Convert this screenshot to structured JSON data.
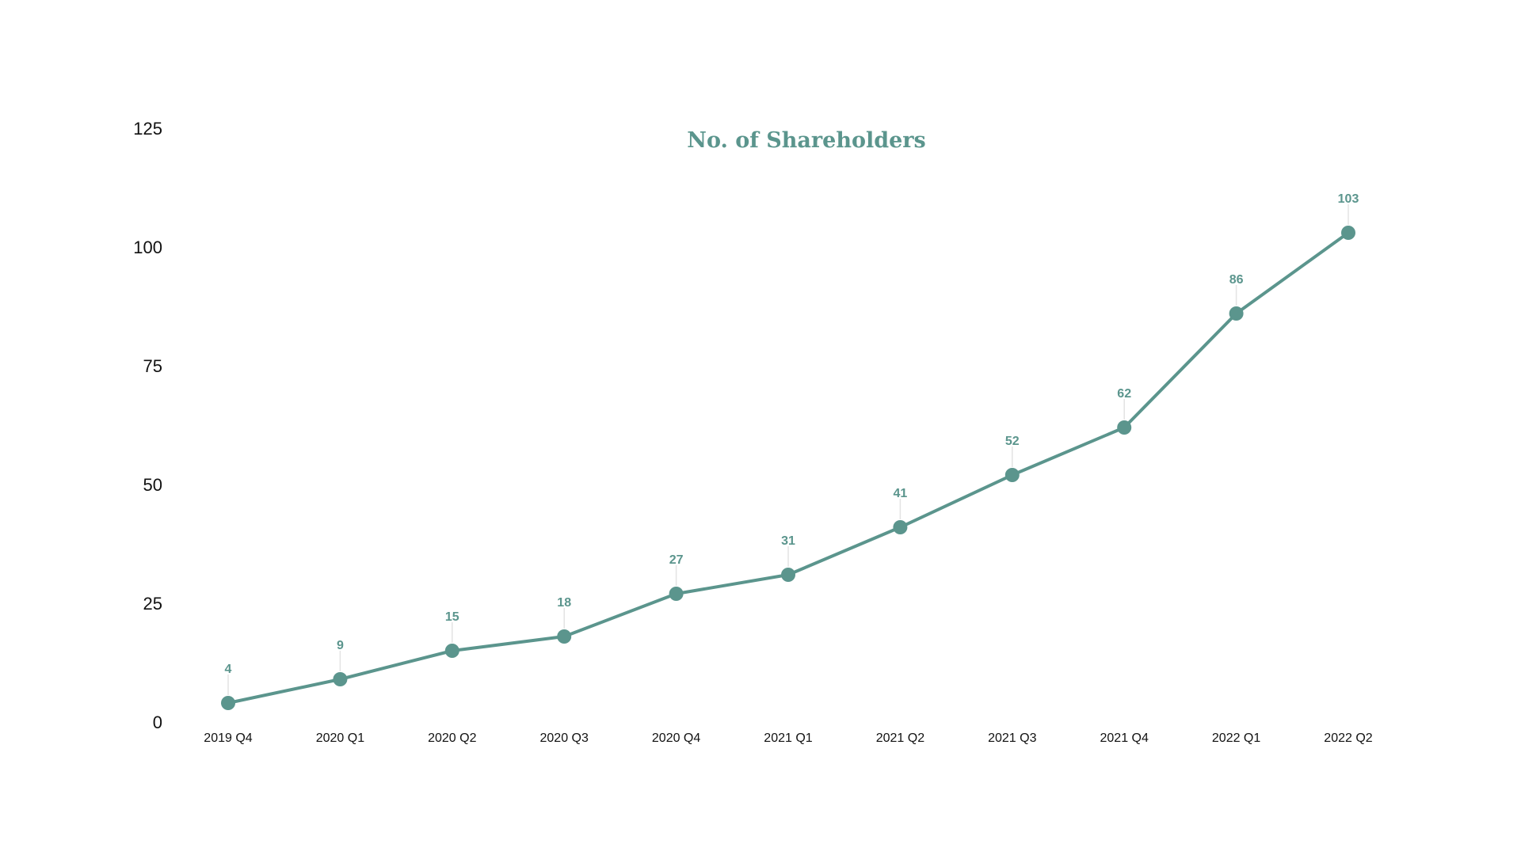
{
  "chart_data": {
    "type": "line",
    "title": "No. of Shareholders",
    "xlabel": "",
    "ylabel": "",
    "categories": [
      "2019 Q4",
      "2020 Q1",
      "2020 Q2",
      "2020 Q3",
      "2020 Q4",
      "2021 Q1",
      "2021 Q2",
      "2021 Q3",
      "2021 Q4",
      "2022 Q1",
      "2022 Q2"
    ],
    "series": [
      {
        "values": [
          4,
          9,
          15,
          18,
          27,
          31,
          41,
          52,
          62,
          86,
          103
        ]
      }
    ],
    "ylim": [
      0,
      125
    ],
    "yticks": [
      "0",
      "25",
      "50",
      "75",
      "100",
      "125"
    ],
    "grid": false,
    "legend": "none",
    "color": "#5b958d"
  }
}
